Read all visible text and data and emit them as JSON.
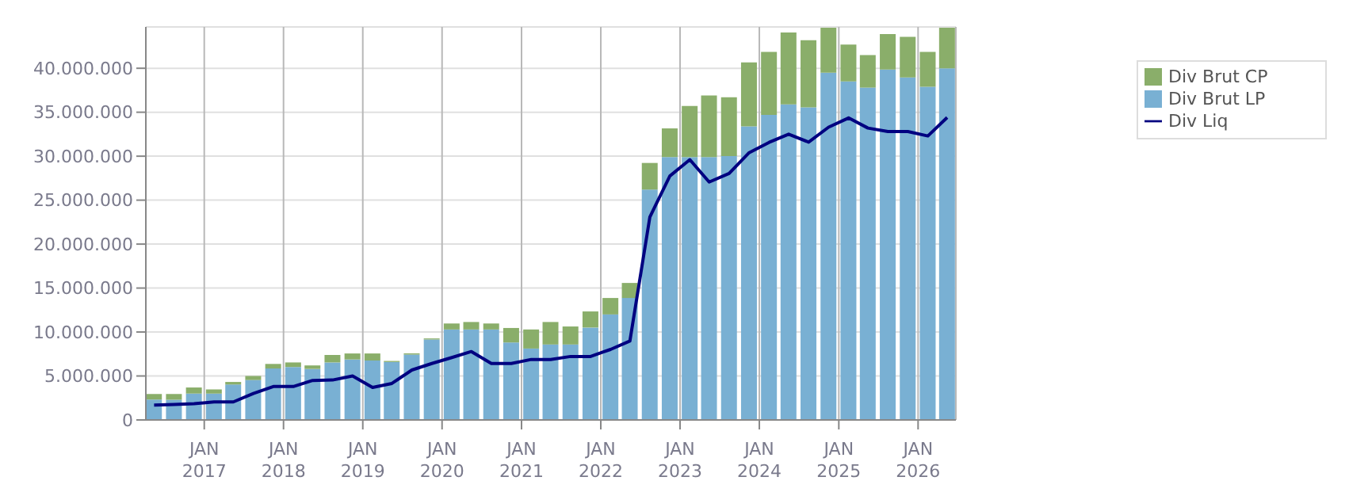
{
  "chart_data": {
    "type": "bar",
    "stacked": true,
    "x": [
      "2016-05-15",
      "2016-08-15",
      "2016-11-15",
      "2017-02-15",
      "2017-05-15",
      "2017-08-15",
      "2017-11-15",
      "2018-02-15",
      "2018-05-15",
      "2018-08-15",
      "2018-11-15",
      "2019-02-15",
      "2019-05-15",
      "2019-08-15",
      "2019-11-15",
      "2020-02-15",
      "2020-05-15",
      "2020-08-15",
      "2020-11-15",
      "2021-02-15",
      "2021-05-15",
      "2021-08-15",
      "2021-11-15",
      "2022-02-15",
      "2022-05-15",
      "2022-08-15",
      "2022-11-15",
      "2023-02-15",
      "2023-05-15",
      "2023-08-15",
      "2023-11-15",
      "2024-02-15",
      "2024-05-15",
      "2024-08-15",
      "2024-11-15",
      "2025-02-15",
      "2025-05-15",
      "2025-08-15",
      "2025-11-15",
      "2026-02-15",
      "2026-05-15"
    ],
    "series": [
      {
        "name": "Div Brut LP",
        "color": "#79b0d3",
        "values": [
          2320000,
          2300000,
          3000000,
          3000000,
          4030000,
          4540000,
          5850000,
          6020000,
          5800000,
          6540000,
          6880000,
          6760000,
          6590000,
          7440000,
          9150000,
          10290000,
          10290000,
          10290000,
          8810000,
          8120000,
          8580000,
          8580000,
          10510000,
          12000000,
          13870000,
          26200000,
          29900000,
          29900000,
          29900000,
          30000000,
          33400000,
          34700000,
          35900000,
          35550000,
          39500000,
          38500000,
          37800000,
          39860000,
          38960000,
          37900000,
          39980000
        ]
      },
      {
        "name": "Div Brut CP",
        "color": "#8aae6a",
        "values": [
          630000,
          650000,
          690000,
          460000,
          290000,
          460000,
          520000,
          520000,
          400000,
          850000,
          680000,
          800000,
          120000,
          120000,
          120000,
          680000,
          850000,
          680000,
          1650000,
          2170000,
          2560000,
          2050000,
          1830000,
          1870000,
          1710000,
          3030000,
          3260000,
          5820000,
          7000000,
          6700000,
          7270000,
          7160000,
          8180000,
          7650000,
          5100000,
          4200000,
          3700000,
          4040000,
          4610000,
          3960000,
          4620000
        ]
      },
      {
        "name": "Div Liq",
        "type": "line",
        "color": "#000080",
        "values": [
          1700000,
          1750000,
          1850000,
          2050000,
          2050000,
          3000000,
          3800000,
          3800000,
          4490000,
          4540000,
          5000000,
          3690000,
          4150000,
          5680000,
          6420000,
          7100000,
          7780000,
          6420000,
          6420000,
          6880000,
          6880000,
          7220000,
          7220000,
          8020000,
          8980000,
          23090000,
          27750000,
          29600000,
          27060000,
          28040000,
          30400000,
          31570000,
          32500000,
          31600000,
          33300000,
          34350000,
          33200000,
          32800000,
          32800000,
          32300000,
          34400000
        ]
      }
    ],
    "xlim": [
      "2016-04-07",
      "2026-06-24"
    ],
    "xticks": [
      {
        "value": "2017-01-01",
        "label": "JAN\n2017"
      },
      {
        "value": "2018-01-01",
        "label": "JAN\n2018"
      },
      {
        "value": "2019-01-01",
        "label": "JAN\n2019"
      },
      {
        "value": "2020-01-01",
        "label": "JAN\n2020"
      },
      {
        "value": "2021-01-01",
        "label": "JAN\n2021"
      },
      {
        "value": "2022-01-01",
        "label": "JAN\n2022"
      },
      {
        "value": "2023-01-01",
        "label": "JAN\n2023"
      },
      {
        "value": "2024-01-01",
        "label": "JAN\n2024"
      },
      {
        "value": "2025-01-01",
        "label": "JAN\n2025"
      },
      {
        "value": "2026-01-01",
        "label": "JAN\n2026"
      }
    ],
    "ylim": [
      0,
      44700000
    ],
    "yticks": [
      {
        "value": 0,
        "label": "0"
      },
      {
        "value": 5000000,
        "label": "5.000.000"
      },
      {
        "value": 10000000,
        "label": "10.000.000"
      },
      {
        "value": 15000000,
        "label": "15.000.000"
      },
      {
        "value": 20000000,
        "label": "20.000.000"
      },
      {
        "value": 25000000,
        "label": "25.000.000"
      },
      {
        "value": 30000000,
        "label": "30.000.000"
      },
      {
        "value": 35000000,
        "label": "35.000.000"
      },
      {
        "value": 40000000,
        "label": "40.000.000"
      }
    ],
    "grid": true,
    "legend": "top right",
    "marker": "none",
    "line_style": "solid"
  }
}
